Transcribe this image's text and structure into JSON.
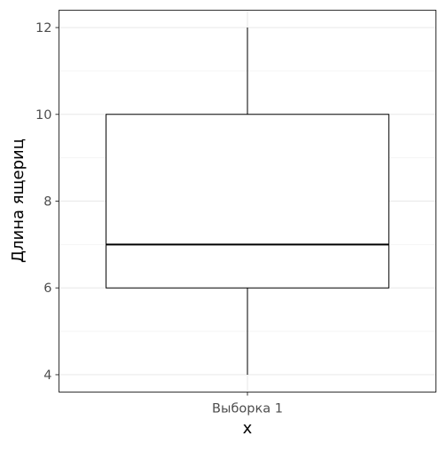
{
  "chart_data": {
    "type": "boxplot",
    "xlabel": "x",
    "ylabel": "Длина ящериц",
    "categories": [
      "Выборка 1"
    ],
    "boxes": [
      {
        "category": "Выборка 1",
        "min": 4,
        "q1": 6,
        "median": 7,
        "q3": 10,
        "max": 12
      }
    ],
    "ylim": [
      3.6,
      12.4
    ],
    "yticks": [
      4,
      6,
      8,
      10,
      12
    ],
    "ytick_labels": [
      "4",
      "6",
      "8",
      "10",
      "12"
    ],
    "grid": true,
    "legend": "none",
    "colors": {
      "box_fill": "#ffffff",
      "box_stroke": "#000000",
      "grid_major": "#ebebeb",
      "grid_minor": "#f5f5f5",
      "panel_border": "#333333",
      "tick_text": "#4d4d4d"
    }
  }
}
